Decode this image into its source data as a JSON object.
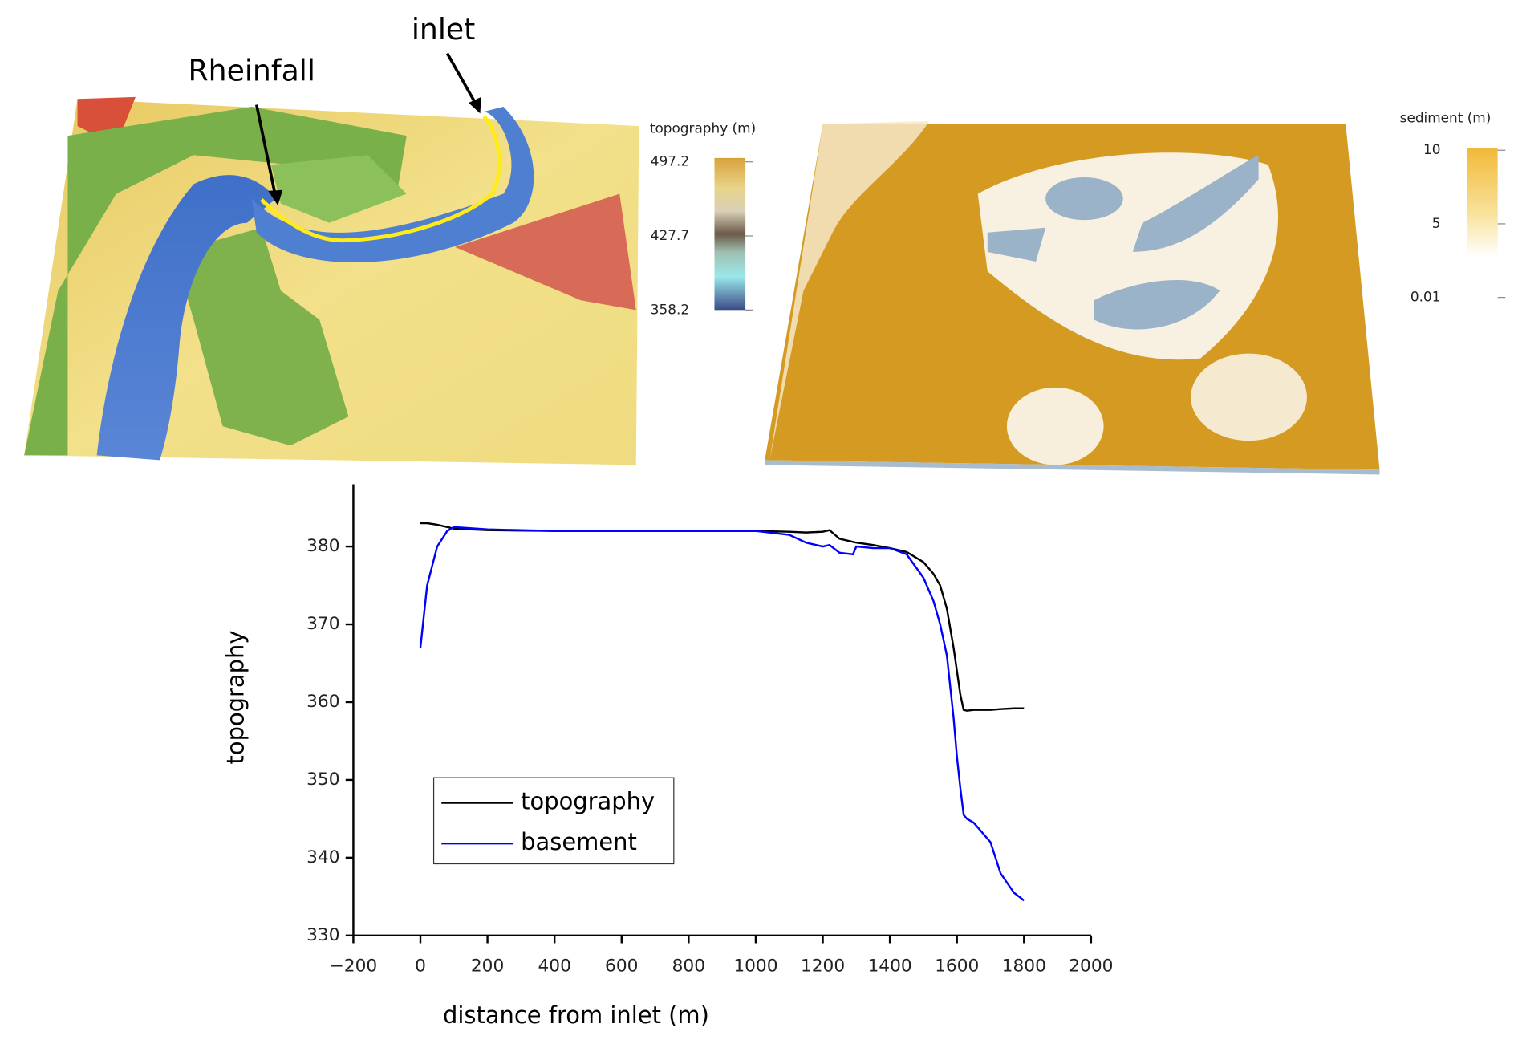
{
  "maps": [
    {
      "annotations": [
        "Rheinfall",
        "inlet"
      ],
      "colorbar": {
        "title": "topography (m)",
        "ticks": [
          497.2,
          427.7,
          358.2
        ]
      }
    },
    {
      "colorbar": {
        "title": "sediment (m)",
        "ticks": [
          10,
          5,
          0.01
        ]
      }
    }
  ],
  "chart_data": {
    "type": "line",
    "xlabel": "distance from inlet (m)",
    "ylabel": "topography",
    "x": [
      0,
      20,
      50,
      80,
      100,
      200,
      400,
      600,
      800,
      1000,
      1100,
      1150,
      1200,
      1220,
      1250,
      1290,
      1300,
      1350,
      1400,
      1450,
      1500,
      1530,
      1550,
      1570,
      1590,
      1600,
      1610,
      1620,
      1630,
      1650,
      1700,
      1730,
      1770,
      1800
    ],
    "series": [
      {
        "name": "topography",
        "color": "#000000",
        "values": [
          383,
          383,
          382.8,
          382.5,
          382.3,
          382.1,
          382,
          382,
          382,
          382,
          381.9,
          381.8,
          381.9,
          382.1,
          381,
          380.6,
          380.5,
          380.2,
          379.8,
          379.3,
          378,
          376.5,
          375,
          372,
          367,
          364,
          361,
          359,
          358.9,
          359,
          359,
          359.1,
          359.2,
          359.2
        ]
      },
      {
        "name": "basement",
        "color": "#0000ff",
        "values": [
          367,
          375,
          380,
          382,
          382.5,
          382.2,
          382,
          382,
          382,
          382,
          381.5,
          380.5,
          380,
          380.2,
          379.2,
          379,
          380,
          379.8,
          379.8,
          379,
          376,
          373,
          370,
          366,
          358,
          353,
          349,
          345.5,
          345,
          344.5,
          342,
          338,
          335.5,
          334.5
        ]
      }
    ],
    "xlim": [
      -200,
      2000
    ],
    "ylim": [
      330,
      388
    ],
    "xticks": [
      {
        "value": -200,
        "label": "−200"
      },
      0,
      200,
      400,
      600,
      800,
      1000,
      1200,
      1400,
      1600,
      1800,
      2000
    ],
    "yticks": [
      330,
      340,
      350,
      360,
      370,
      380
    ],
    "legend": "lower left"
  }
}
